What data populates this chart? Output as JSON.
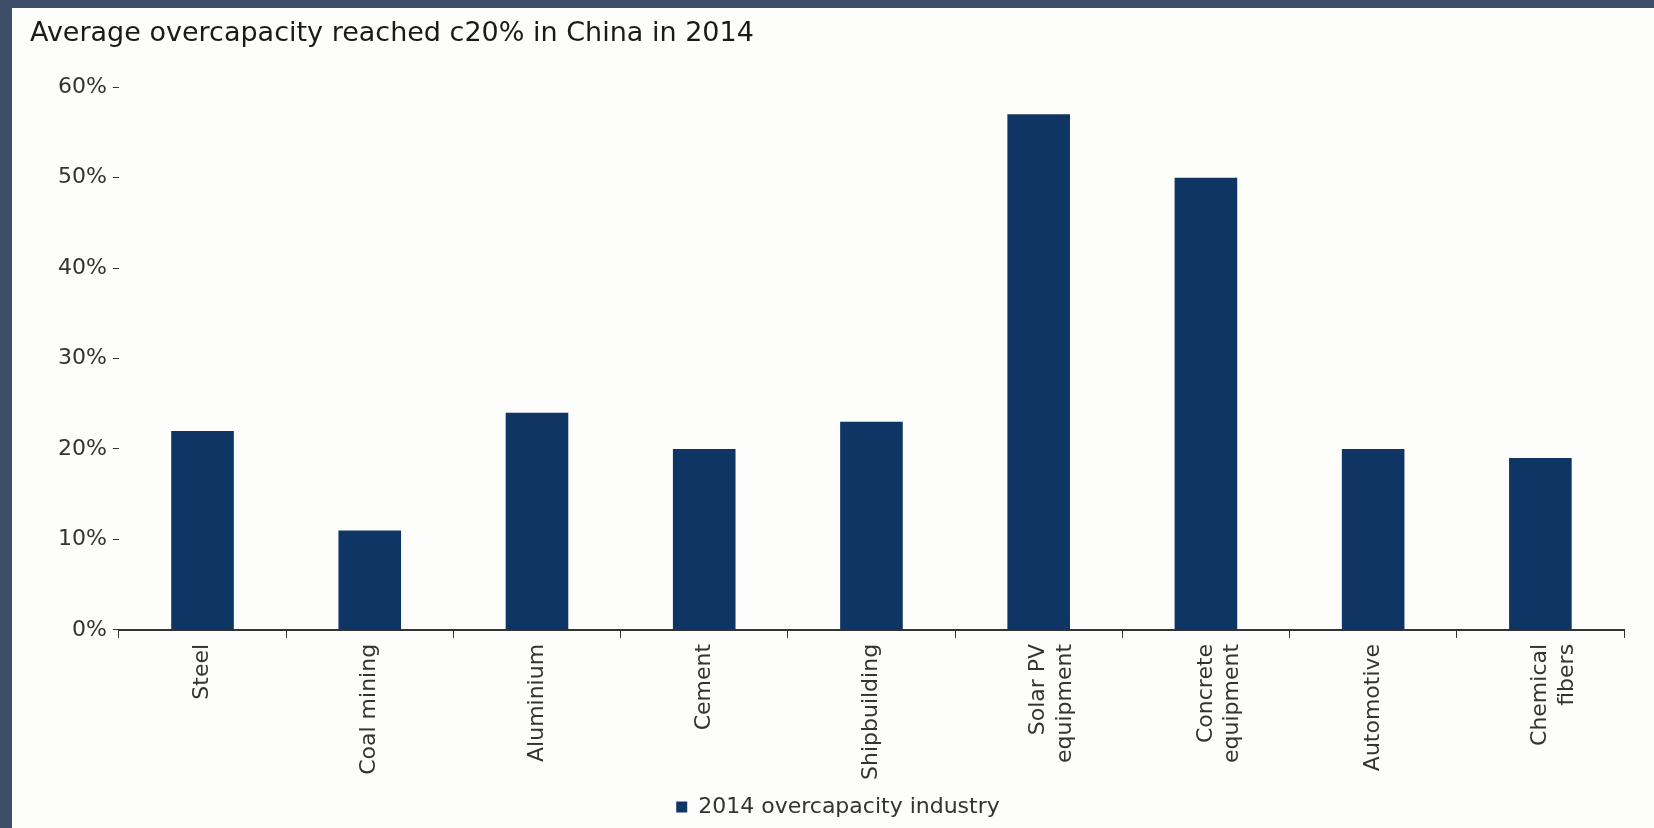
{
  "chart_data": {
    "type": "bar",
    "title": "Average overcapacity reached c20% in China in 2014",
    "categories": [
      "Steel",
      "Coal mining",
      "Aluminium",
      "Cement",
      "Shipbuilding",
      "Solar PV equipment",
      "Concrete equipment",
      "Automotive",
      "Chemical fibers"
    ],
    "series": [
      {
        "name": "2014 overcapacity industry",
        "color": "#0e3563",
        "values": [
          22,
          11,
          24,
          20,
          23,
          57,
          50,
          20,
          19
        ]
      }
    ],
    "ylim": [
      0,
      60
    ],
    "yticks": [
      {
        "value": 0,
        "label": "0%"
      },
      {
        "value": 10,
        "label": "10%"
      },
      {
        "value": 20,
        "label": "20%"
      },
      {
        "value": 30,
        "label": "30%"
      },
      {
        "value": 40,
        "label": "40%"
      },
      {
        "value": 50,
        "label": "50%"
      },
      {
        "value": 60,
        "label": "60%"
      }
    ],
    "grid": false,
    "legend": "bottom"
  }
}
